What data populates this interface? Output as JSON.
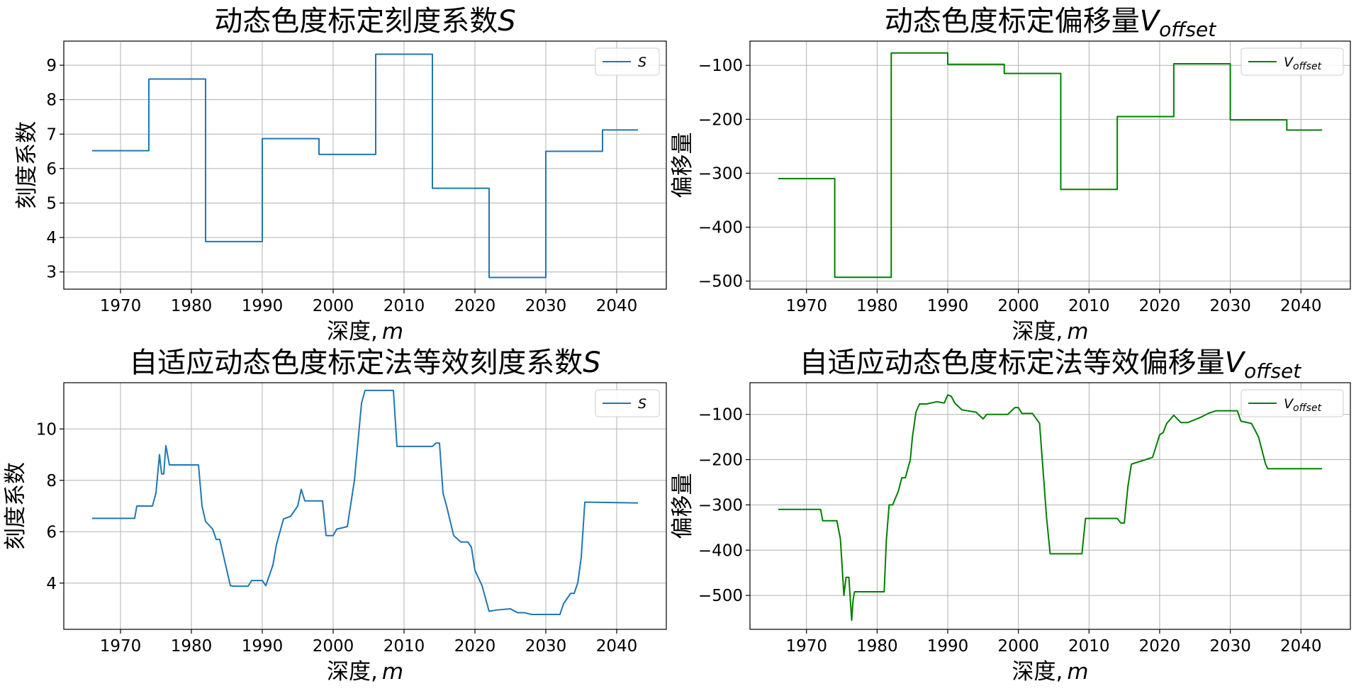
{
  "chart_data": [
    {
      "id": "top-left",
      "type": "line",
      "title": "动态色度标定刻度系数",
      "title_symbol": "S",
      "title_subscript": "",
      "xlabel": "深度,",
      "xlabel_symbol": "m",
      "ylabel": "刻度系数",
      "xlim": [
        1962,
        2047
      ],
      "ylim": [
        2.5,
        9.7
      ],
      "xticks": [
        1970,
        1980,
        1990,
        2000,
        2010,
        2020,
        2030,
        2040
      ],
      "yticks": [
        3,
        4,
        5,
        6,
        7,
        8,
        9
      ],
      "xtick_labels": [
        "1970",
        "1980",
        "1990",
        "2000",
        "2010",
        "2020",
        "2030",
        "2040"
      ],
      "ytick_labels": [
        "3",
        "4",
        "5",
        "6",
        "7",
        "8",
        "9"
      ],
      "grid": true,
      "legend_position": "top-right",
      "color": "#1f77b4",
      "series": [
        {
          "legend_symbol": "S",
          "legend_subscript": "",
          "x": [
            1966,
            1974,
            1974,
            1982,
            1982,
            1990,
            1990,
            1998,
            1998,
            2006,
            2006,
            2014,
            2014,
            2022,
            2022,
            2030,
            2030,
            2038,
            2038,
            2043
          ],
          "y": [
            6.52,
            6.52,
            8.6,
            8.6,
            3.88,
            3.88,
            6.87,
            6.87,
            6.41,
            6.41,
            9.32,
            9.32,
            5.43,
            5.43,
            2.84,
            2.84,
            6.5,
            6.5,
            7.12,
            7.12
          ]
        }
      ]
    },
    {
      "id": "top-right",
      "type": "line",
      "title": "动态色度标定偏移量",
      "title_symbol": "V",
      "title_subscript": "offset",
      "xlabel": "深度,",
      "xlabel_symbol": "m",
      "ylabel": "偏移量",
      "xlim": [
        1962,
        2047
      ],
      "ylim": [
        -515,
        -55
      ],
      "xticks": [
        1970,
        1980,
        1990,
        2000,
        2010,
        2020,
        2030,
        2040
      ],
      "yticks": [
        -500,
        -400,
        -300,
        -200,
        -100
      ],
      "xtick_labels": [
        "1970",
        "1980",
        "1990",
        "2000",
        "2010",
        "2020",
        "2030",
        "2040"
      ],
      "ytick_labels": [
        "−500",
        "−400",
        "−300",
        "−200",
        "−100"
      ],
      "grid": true,
      "legend_position": "top-right",
      "color": "#008000",
      "series": [
        {
          "legend_symbol": "V",
          "legend_subscript": "offset",
          "x": [
            1966,
            1974,
            1974,
            1982,
            1982,
            1990,
            1990,
            1998,
            1998,
            2006,
            2006,
            2014,
            2014,
            2022,
            2022,
            2030,
            2030,
            2038,
            2038,
            2043
          ],
          "y": [
            -310,
            -310,
            -493,
            -493,
            -77,
            -77,
            -98,
            -98,
            -115,
            -115,
            -330,
            -330,
            -195,
            -195,
            -97,
            -97,
            -201,
            -201,
            -220,
            -220
          ]
        }
      ]
    },
    {
      "id": "bottom-left",
      "type": "line",
      "title": "自适应动态色度标定法等效刻度系数",
      "title_symbol": "S",
      "title_subscript": "",
      "xlabel": "深度,",
      "xlabel_symbol": "m",
      "ylabel": "刻度系数",
      "xlim": [
        1962,
        2047
      ],
      "ylim": [
        2.2,
        11.8
      ],
      "xticks": [
        1970,
        1980,
        1990,
        2000,
        2010,
        2020,
        2030,
        2040
      ],
      "yticks": [
        4,
        6,
        8,
        10
      ],
      "xtick_labels": [
        "1970",
        "1980",
        "1990",
        "2000",
        "2010",
        "2020",
        "2030",
        "2040"
      ],
      "ytick_labels": [
        "4",
        "6",
        "8",
        "10"
      ],
      "grid": true,
      "legend_position": "top-right",
      "color": "#1f77b4",
      "series": [
        {
          "legend_symbol": "S",
          "legend_subscript": "",
          "x": [
            1966,
            1972,
            1972.3,
            1974.5,
            1975,
            1975.5,
            1975.8,
            1976.1,
            1976.4,
            1976.9,
            1977.2,
            1981,
            1981.5,
            1982,
            1983,
            1983.5,
            1984,
            1985,
            1985.5,
            1986,
            1988,
            1988.5,
            1990,
            1990.5,
            1991.5,
            1992,
            1993,
            1994,
            1995,
            1995.5,
            1996,
            1997,
            1998.5,
            1999,
            2000,
            2000.5,
            2002,
            2003,
            2004,
            2004.5,
            2008.5,
            2009,
            2014,
            2014.5,
            2015,
            2015.5,
            2016,
            2017,
            2018,
            2019,
            2019.5,
            2020,
            2021,
            2022,
            2023,
            2025,
            2026,
            2027,
            2028,
            2032,
            2032.5,
            2033.5,
            2034,
            2034.5,
            2035,
            2035.5,
            2043
          ],
          "y": [
            6.52,
            6.52,
            7.0,
            7.0,
            7.5,
            9.0,
            8.25,
            8.25,
            9.35,
            8.6,
            8.6,
            8.6,
            7.0,
            6.4,
            6.1,
            5.7,
            5.7,
            4.5,
            3.9,
            3.88,
            3.88,
            4.1,
            4.1,
            3.9,
            4.7,
            5.5,
            6.5,
            6.6,
            7.0,
            7.65,
            7.2,
            7.2,
            7.2,
            5.85,
            5.85,
            6.1,
            6.2,
            8.0,
            11.0,
            11.5,
            11.5,
            9.32,
            9.32,
            9.45,
            9.45,
            7.5,
            7.0,
            5.85,
            5.6,
            5.6,
            5.4,
            4.5,
            3.9,
            2.9,
            2.95,
            3.0,
            2.85,
            2.85,
            2.78,
            2.78,
            3.2,
            3.6,
            3.6,
            4.0,
            5.0,
            7.15,
            7.12
          ]
        }
      ]
    },
    {
      "id": "bottom-right",
      "type": "line",
      "title": "自适应动态色度标定法等效偏移量",
      "title_symbol": "V",
      "title_subscript": "offset",
      "xlabel": "深度,",
      "xlabel_symbol": "m",
      "ylabel": "偏移量",
      "xlim": [
        1962,
        2047
      ],
      "ylim": [
        -575,
        -30
      ],
      "xticks": [
        1970,
        1980,
        1990,
        2000,
        2010,
        2020,
        2030,
        2040
      ],
      "yticks": [
        -500,
        -400,
        -300,
        -200,
        -100
      ],
      "xtick_labels": [
        "1970",
        "1980",
        "1990",
        "2000",
        "2010",
        "2020",
        "2030",
        "2040"
      ],
      "ytick_labels": [
        "−500",
        "−400",
        "−300",
        "−200",
        "−100"
      ],
      "grid": true,
      "legend_position": "top-right",
      "color": "#008000",
      "series": [
        {
          "legend_symbol": "V",
          "legend_subscript": "offset",
          "x": [
            1966,
            1972,
            1972.3,
            1974.3,
            1974.8,
            1975.3,
            1975.6,
            1976,
            1976.4,
            1976.6,
            1976.8,
            1977.2,
            1981,
            1981.3,
            1981.7,
            1982.2,
            1983,
            1983.5,
            1984,
            1984.7,
            1985,
            1985.5,
            1986,
            1987,
            1988.5,
            1989.5,
            1990,
            1990.5,
            1991,
            1992,
            1994,
            1995,
            1995.5,
            1996.5,
            1998.5,
            1999.5,
            2000,
            2000.5,
            2002,
            2003,
            2004,
            2004.5,
            2009,
            2009.5,
            2014,
            2014.5,
            2015,
            2015.5,
            2016,
            2017,
            2018,
            2019,
            2020,
            2020.5,
            2021,
            2022,
            2023,
            2024,
            2026,
            2027,
            2028,
            2031,
            2031.5,
            2033,
            2034,
            2035,
            2035.3,
            2043
          ],
          "y": [
            -310,
            -310,
            -335,
            -335,
            -375,
            -500,
            -460,
            -460,
            -555,
            -510,
            -492,
            -492,
            -492,
            -380,
            -300,
            -300,
            -270,
            -240,
            -240,
            -200,
            -150,
            -95,
            -77,
            -77,
            -72,
            -75,
            -57,
            -60,
            -75,
            -90,
            -95,
            -110,
            -100,
            -100,
            -100,
            -85,
            -85,
            -98,
            -98,
            -120,
            -330,
            -408,
            -408,
            -330,
            -330,
            -340,
            -340,
            -260,
            -210,
            -205,
            -200,
            -195,
            -145,
            -140,
            -120,
            -102,
            -118,
            -118,
            -105,
            -97,
            -92,
            -92,
            -115,
            -120,
            -150,
            -210,
            -220,
            -220
          ]
        }
      ]
    }
  ]
}
